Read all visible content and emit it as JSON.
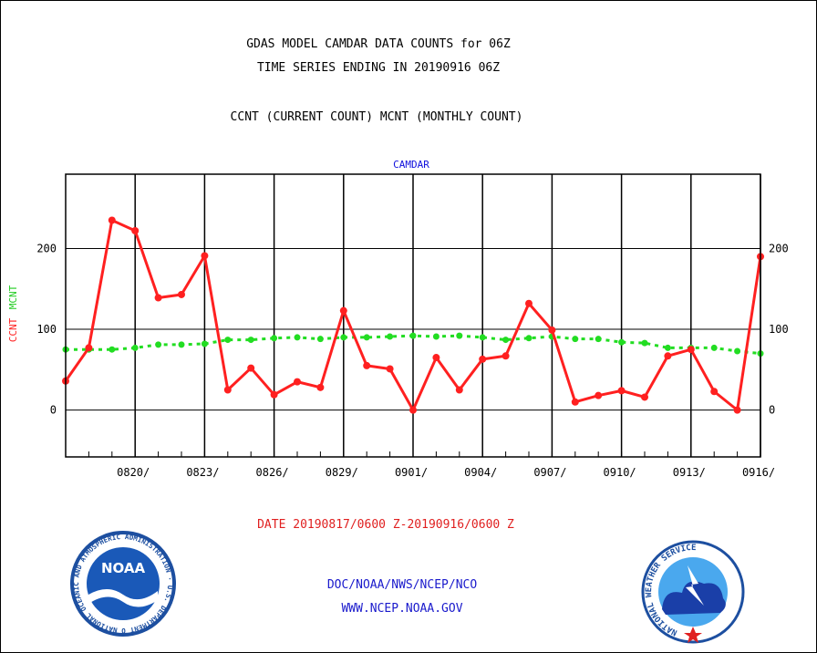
{
  "header": {
    "title_line1": "GDAS MODEL CAMDAR DATA COUNTS for 06Z",
    "title_line2": "TIME SERIES ENDING IN 20190916 06Z",
    "subtitle": "CCNT (CURRENT COUNT) MCNT (MONTHLY COUNT)"
  },
  "footer": {
    "date_range": "DATE 20190817/0600 Z-20190916/0600 Z",
    "org_line": "DOC/NOAA/NWS/NCEP/NCO",
    "url_line": "WWW.NCEP.NOAA.GOV"
  },
  "logos": {
    "noaa_text": "NOAA",
    "noaa_ring_text": "NATIONAL OCEANIC AND ATMOSPHERIC ADMINISTRATION · U.S. DEPARTMENT OF COMMERCE ·",
    "nws_ring_text": "NATIONAL WEATHER SERVICE"
  },
  "colors": {
    "ccnt": "#ff2020",
    "mcnt": "#22dd22",
    "panel_title": "#1010dd",
    "footer_date": "#e02020",
    "footer_org": "#1a1acc"
  },
  "chart_data": {
    "type": "line",
    "panel_title": "CAMDAR",
    "ylabel_ccnt": "CCNT",
    "ylabel_mcnt": "MCNT",
    "ylim": [
      -58,
      292
    ],
    "yticks": [
      0,
      100,
      200
    ],
    "x_tick_labels": [
      "0820/",
      "0823/",
      "0826/",
      "0829/",
      "0901/",
      "0904/",
      "0907/",
      "0910/",
      "0913/",
      "0916/"
    ],
    "x_tick_days": [
      3,
      6,
      9,
      12,
      15,
      18,
      21,
      24,
      27,
      30
    ],
    "x_range_days": [
      0,
      30
    ],
    "grid": true,
    "series": [
      {
        "name": "CCNT",
        "x_days": [
          0,
          1,
          2,
          3,
          4,
          5,
          6,
          7,
          8,
          9,
          10,
          11,
          12,
          13,
          14,
          15,
          16,
          17,
          18,
          19,
          20,
          21,
          22,
          23,
          24,
          25,
          26,
          27,
          28,
          29,
          30
        ],
        "values": [
          36,
          77,
          235,
          222,
          139,
          143,
          191,
          25,
          52,
          19,
          35,
          28,
          123,
          55,
          51,
          0,
          65,
          25,
          63,
          67,
          132,
          99,
          10,
          18,
          24,
          16,
          67,
          75,
          23,
          0,
          190
        ]
      },
      {
        "name": "MCNT",
        "x_days": [
          0,
          1,
          2,
          3,
          4,
          5,
          6,
          7,
          8,
          9,
          10,
          11,
          12,
          13,
          14,
          15,
          16,
          17,
          18,
          19,
          20,
          21,
          22,
          23,
          24,
          25,
          26,
          27,
          28,
          29,
          30
        ],
        "values": [
          75,
          75,
          75,
          77,
          81,
          81,
          82,
          87,
          87,
          89,
          90,
          88,
          90,
          90,
          91,
          92,
          91,
          92,
          90,
          87,
          89,
          91,
          88,
          88,
          84,
          83,
          77,
          77,
          77,
          73,
          70
        ]
      }
    ]
  }
}
